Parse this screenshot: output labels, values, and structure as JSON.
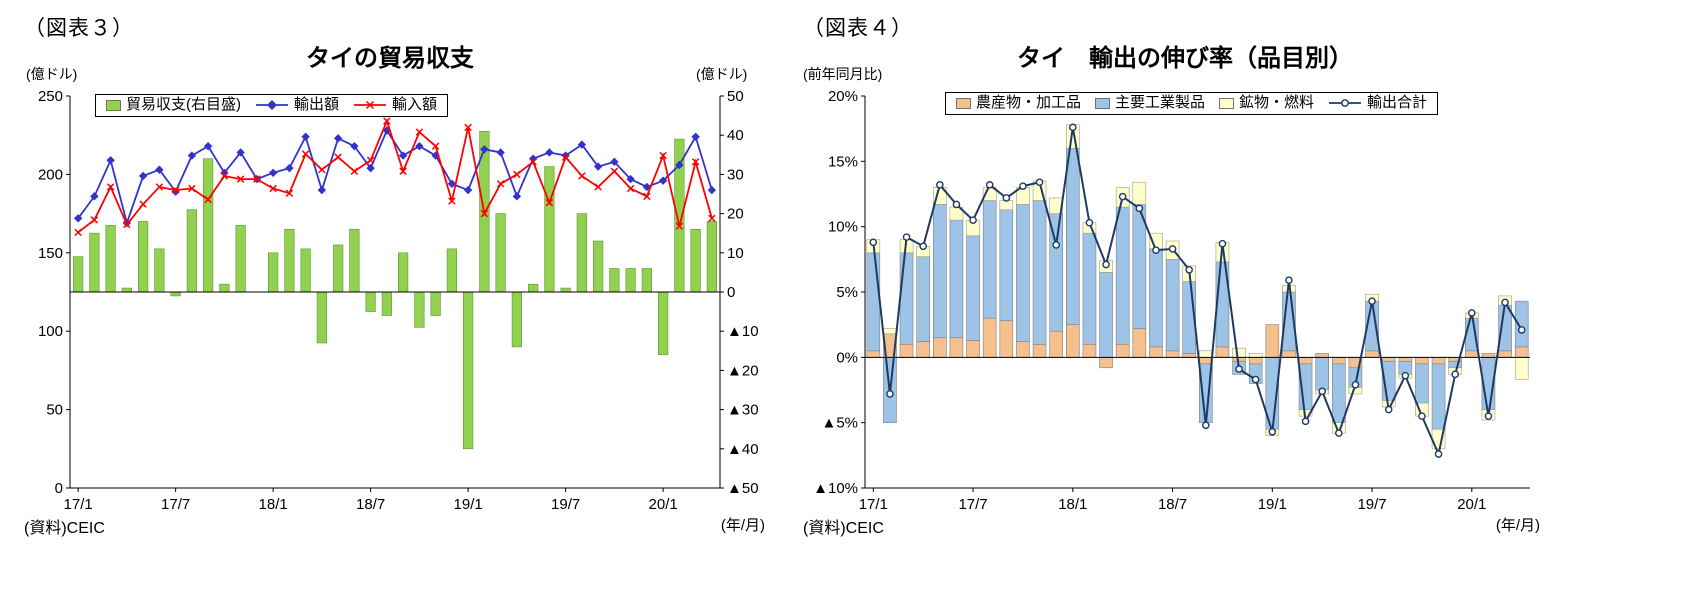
{
  "figure3": {
    "tag": "（図表３）",
    "title": "タイの貿易収支",
    "y_left_unit": "(億ドル)",
    "y_right_unit": "(億ドル)",
    "source": "(資料)CEIC",
    "x_unit": "(年/月)",
    "legend": [
      "貿易収支(右目盛)",
      "輸出額",
      "輸入額"
    ]
  },
  "figure4": {
    "tag": "（図表４）",
    "title": "タイ　輸出の伸び率（品目別）",
    "y_unit": "(前年同月比)",
    "source": "(資料)CEIC",
    "x_unit": "(年/月)",
    "legend": [
      "農産物・加工品",
      "主要工業製品",
      "鉱物・燃料",
      "輸出合計"
    ]
  },
  "chart_data": [
    {
      "id": "fig3",
      "type": "bar",
      "subtype": "bar-plus-lines-combo",
      "title": "タイの貿易収支",
      "months": [
        "17/1",
        "17/2",
        "17/3",
        "17/4",
        "17/5",
        "17/6",
        "17/7",
        "17/8",
        "17/9",
        "17/10",
        "17/11",
        "17/12",
        "18/1",
        "18/2",
        "18/3",
        "18/4",
        "18/5",
        "18/6",
        "18/7",
        "18/8",
        "18/9",
        "18/10",
        "18/11",
        "18/12",
        "19/1",
        "19/2",
        "19/3",
        "19/4",
        "19/5",
        "19/6",
        "19/7",
        "19/8",
        "19/9",
        "19/10",
        "19/11",
        "19/12",
        "20/1",
        "20/2",
        "20/3",
        "20/4"
      ],
      "x_tick_indices": [
        0,
        6,
        12,
        18,
        24,
        30,
        36
      ],
      "x_tick_labels": [
        "17/1",
        "17/7",
        "18/1",
        "18/7",
        "19/1",
        "19/7",
        "20/1"
      ],
      "y_left": {
        "min": 0,
        "max": 250,
        "ticks": [
          0,
          50,
          100,
          150,
          200,
          250
        ],
        "labels": [
          "0",
          "50",
          "100",
          "150",
          "200",
          "250"
        ]
      },
      "y_right": {
        "min": -50,
        "max": 50,
        "ticks": [
          50,
          40,
          30,
          20,
          10,
          0,
          -10,
          -20,
          -30,
          -40,
          -50
        ],
        "labels": [
          "50",
          "40",
          "30",
          "20",
          "10",
          "0",
          "▲10",
          "▲20",
          "▲30",
          "▲40",
          "▲50"
        ]
      },
      "series": [
        {
          "name": "貿易収支(右目盛)",
          "type": "bar",
          "axis": "right",
          "color": "#92D050",
          "border": "#5a9a32",
          "values": [
            9,
            15,
            17,
            1,
            18,
            11,
            -1,
            21,
            34,
            2,
            17,
            0,
            10,
            16,
            11,
            -13,
            12,
            16,
            -5,
            -6,
            10,
            -9,
            -6,
            11,
            -40,
            41,
            20,
            -14,
            2,
            32,
            1,
            20,
            13,
            6,
            6,
            6,
            -16,
            39,
            16,
            18
          ]
        },
        {
          "name": "輸出額",
          "type": "line",
          "axis": "left",
          "color": "#3333CC",
          "marker": "diamond",
          "values": [
            172,
            186,
            209,
            169,
            199,
            203,
            189,
            212,
            218,
            201,
            214,
            197,
            201,
            204,
            224,
            190,
            223,
            218,
            204,
            228,
            212,
            218,
            212,
            194,
            190,
            216,
            214,
            186,
            210,
            214,
            212,
            219,
            205,
            208,
            197,
            192,
            196,
            206,
            224,
            190
          ]
        },
        {
          "name": "輸入額",
          "type": "line",
          "axis": "left",
          "color": "#FF0000",
          "marker": "x",
          "values": [
            163,
            171,
            192,
            168,
            181,
            192,
            190,
            191,
            184,
            199,
            197,
            197,
            191,
            188,
            213,
            203,
            211,
            202,
            209,
            234,
            202,
            227,
            218,
            183,
            230,
            175,
            194,
            200,
            208,
            182,
            211,
            199,
            192,
            202,
            191,
            186,
            212,
            167,
            208,
            172
          ]
        }
      ]
    },
    {
      "id": "fig4",
      "type": "bar",
      "subtype": "stacked-bar-plus-line",
      "title": "タイ　輸出の伸び率（品目別）",
      "months": [
        "17/1",
        "17/2",
        "17/3",
        "17/4",
        "17/5",
        "17/6",
        "17/7",
        "17/8",
        "17/9",
        "17/10",
        "17/11",
        "17/12",
        "18/1",
        "18/2",
        "18/3",
        "18/4",
        "18/5",
        "18/6",
        "18/7",
        "18/8",
        "18/9",
        "18/10",
        "18/11",
        "18/12",
        "19/1",
        "19/2",
        "19/3",
        "19/4",
        "19/5",
        "19/6",
        "19/7",
        "19/8",
        "19/9",
        "19/10",
        "19/11",
        "19/12",
        "20/1",
        "20/2",
        "20/3",
        "20/4"
      ],
      "x_tick_indices": [
        0,
        6,
        12,
        18,
        24,
        30,
        36
      ],
      "x_tick_labels": [
        "17/1",
        "17/7",
        "18/1",
        "18/7",
        "19/1",
        "19/7",
        "20/1"
      ],
      "y": {
        "min": -10,
        "max": 20,
        "ticks": [
          20,
          15,
          10,
          5,
          0,
          -5,
          -10
        ],
        "labels": [
          "20%",
          "15%",
          "10%",
          "5%",
          "0%",
          "▲5%",
          "▲10%"
        ]
      },
      "bar_series": [
        {
          "name": "農産物・加工品",
          "color": "#F5C08E",
          "border": "#7f7f7f",
          "values": [
            0.5,
            1.8,
            1.0,
            1.2,
            1.5,
            1.5,
            1.3,
            3.0,
            2.8,
            1.2,
            1.0,
            2.0,
            2.5,
            1.0,
            -0.8,
            1.0,
            2.2,
            0.8,
            0.5,
            0.3,
            -0.5,
            0.8,
            -0.3,
            -0.5,
            2.5,
            0.5,
            -0.5,
            0.3,
            -0.5,
            -0.8,
            0.5,
            -0.3,
            -0.3,
            -0.5,
            -0.5,
            -0.3,
            0.5,
            0.3,
            0.5,
            0.8
          ]
        },
        {
          "name": "主要工業製品",
          "color": "#9DC3E6",
          "border": "#7f7f7f",
          "values": [
            7.5,
            -5.0,
            7.0,
            6.5,
            10.2,
            9.0,
            8.0,
            9.0,
            8.5,
            10.5,
            11.0,
            9.0,
            13.5,
            8.5,
            6.5,
            10.5,
            9.5,
            7.5,
            7.0,
            5.5,
            -4.5,
            6.5,
            -1.0,
            -1.5,
            -5.5,
            4.5,
            -3.5,
            -2.5,
            -4.5,
            -1.5,
            3.8,
            -3.0,
            -1.0,
            -3.0,
            -5.0,
            -0.5,
            2.5,
            -4.0,
            3.5,
            3.5
          ]
        },
        {
          "name": "鉱物・燃料",
          "color": "#FFFFCC",
          "border": "#9f9f7f",
          "values": [
            1.0,
            0.4,
            1.0,
            0.8,
            1.3,
            1.0,
            1.2,
            1.0,
            0.7,
            1.3,
            1.5,
            1.2,
            1.8,
            0.8,
            0.9,
            1.5,
            1.7,
            1.2,
            1.4,
            1.2,
            0.5,
            1.5,
            0.7,
            0.3,
            -0.5,
            0.5,
            -0.5,
            -0.3,
            -0.8,
            -0.5,
            0.5,
            -0.5,
            -0.3,
            -1.0,
            -1.5,
            -0.5,
            0.4,
            -0.8,
            0.7,
            -1.7
          ]
        }
      ],
      "line_series": {
        "name": "輸出合計",
        "color": "#1F3864",
        "marker": "circle-open",
        "values": [
          8.8,
          -2.8,
          9.2,
          8.5,
          13.2,
          11.7,
          10.5,
          13.2,
          12.2,
          13.1,
          13.4,
          8.6,
          17.6,
          10.3,
          7.1,
          12.3,
          11.4,
          8.2,
          8.3,
          6.7,
          -5.2,
          8.7,
          -0.9,
          -1.7,
          -5.7,
          5.9,
          -4.9,
          -2.6,
          -5.8,
          -2.1,
          4.3,
          -4.0,
          -1.4,
          -4.5,
          -7.4,
          -1.3,
          3.4,
          -4.5,
          4.2,
          2.1
        ]
      }
    }
  ]
}
